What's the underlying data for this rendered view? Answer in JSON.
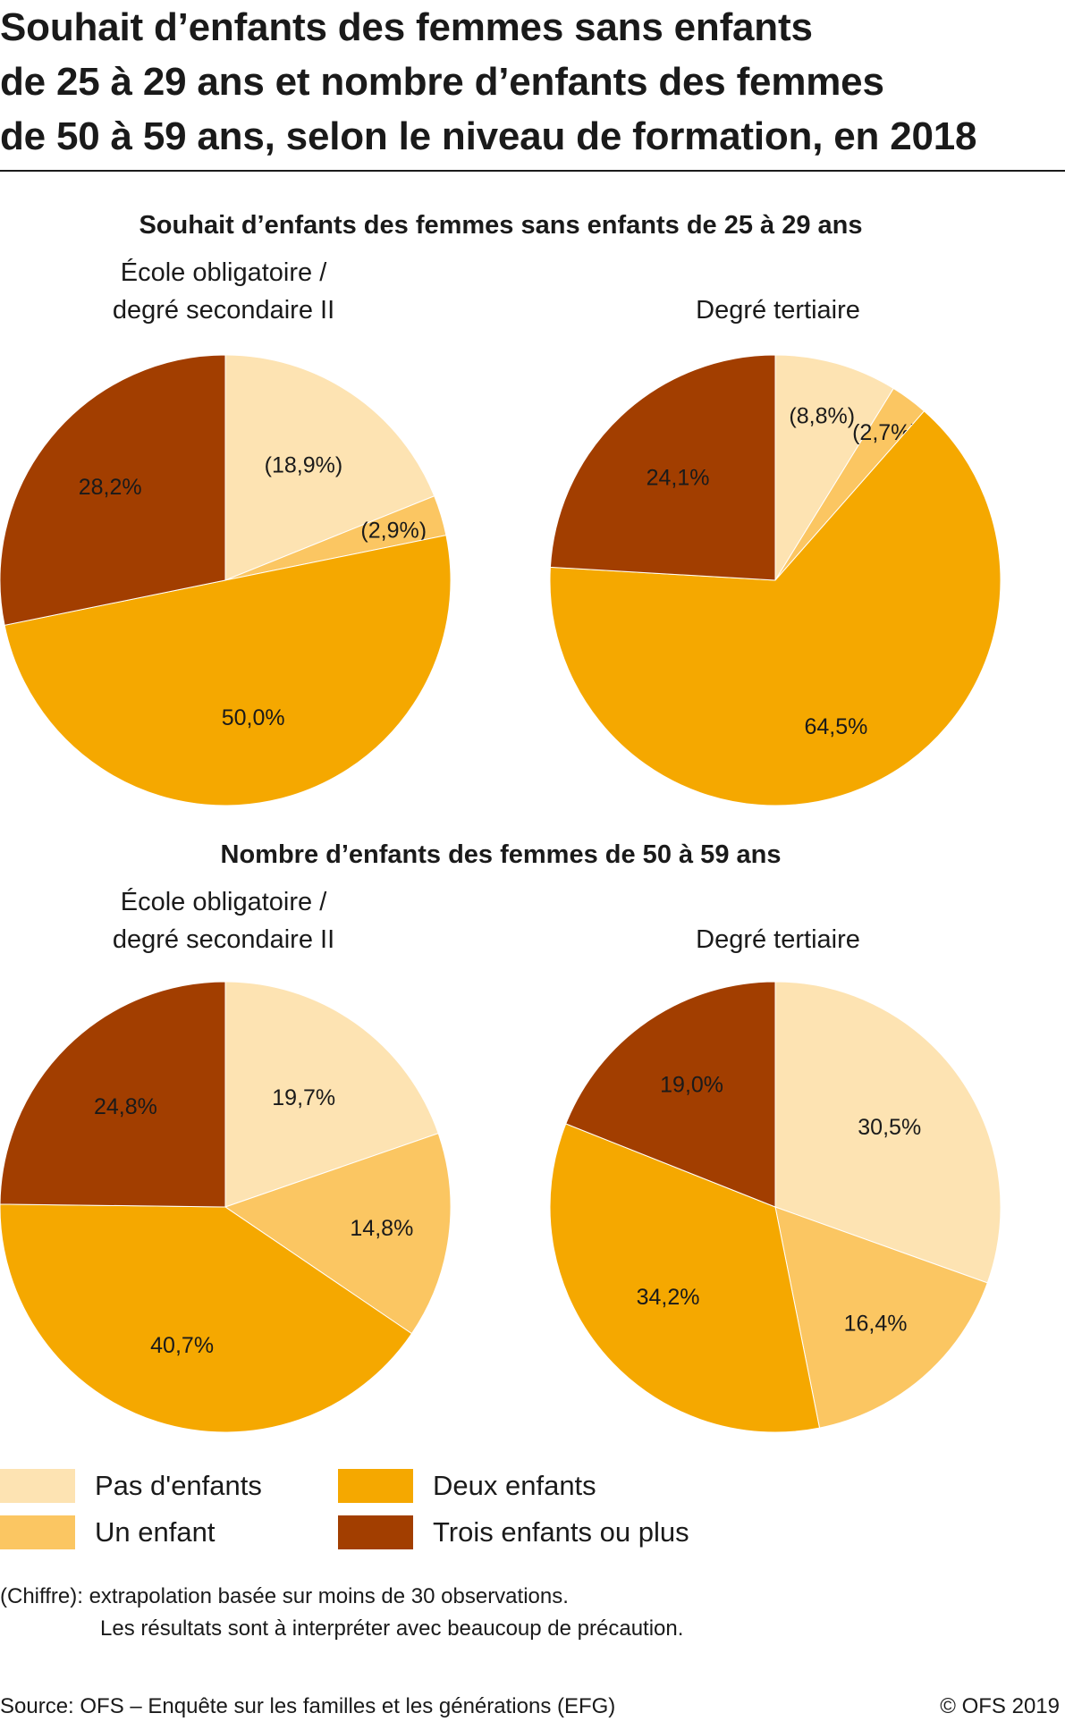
{
  "title_lines": [
    "Souhait d’enfants des femmes sans enfants",
    "de 25 à 29 ans et nombre d’enfants des femmes",
    "de 50 à 59 ans, selon le niveau de formation, en 2018"
  ],
  "section_titles": [
    "Souhait d’enfants des femmes sans enfants de 25 à 29 ans",
    "Nombre d’enfants des femmes de 50 à 59 ans"
  ],
  "colors": {
    "pas_enfants": "#fde3b2",
    "un_enfant": "#fbc662",
    "deux_enfants": "#f5a800",
    "trois_plus": "#a23e00"
  },
  "legend": [
    {
      "label": "Pas d'enfants",
      "color": "#fde3b2"
    },
    {
      "label": "Un enfant",
      "color": "#fbc662"
    },
    {
      "label": "Deux enfants",
      "color": "#f5a800"
    },
    {
      "label": "Trois enfants ou plus",
      "color": "#a23e00"
    }
  ],
  "chart_data": [
    {
      "type": "pie",
      "section": "Souhait d’enfants des femmes sans enfants de 25 à 29 ans",
      "title_lines": [
        "École obligatoire /",
        "degré secondaire II"
      ],
      "categories": [
        "Pas d'enfants",
        "Un enfant",
        "Deux enfants",
        "Trois enfants ou plus"
      ],
      "values": [
        18.9,
        2.9,
        50.0,
        28.2
      ],
      "labels": [
        "(18,9%)",
        "(2,9%)",
        "50,0%",
        "28,2%"
      ]
    },
    {
      "type": "pie",
      "section": "Souhait d’enfants des femmes sans enfants de 25 à 29 ans",
      "title_lines": [
        "Degré tertiaire"
      ],
      "categories": [
        "Pas d'enfants",
        "Un enfant",
        "Deux enfants",
        "Trois enfants ou plus"
      ],
      "values": [
        8.8,
        2.7,
        64.5,
        24.1
      ],
      "labels": [
        "(8,8%)",
        "(2,7%)",
        "64,5%",
        "24,1%"
      ]
    },
    {
      "type": "pie",
      "section": "Nombre d’enfants des femmes de 50 à 59 ans",
      "title_lines": [
        "École obligatoire /",
        "degré secondaire II"
      ],
      "categories": [
        "Pas d'enfants",
        "Un enfant",
        "Deux enfants",
        "Trois enfants ou plus"
      ],
      "values": [
        19.7,
        14.8,
        40.7,
        24.8
      ],
      "labels": [
        "19,7%",
        "14,8%",
        "40,7%",
        "24,8%"
      ]
    },
    {
      "type": "pie",
      "section": "Nombre d’enfants des femmes de 50 à 59 ans",
      "title_lines": [
        "Degré tertiaire"
      ],
      "categories": [
        "Pas d'enfants",
        "Un enfant",
        "Deux enfants",
        "Trois enfants ou plus"
      ],
      "values": [
        30.5,
        16.4,
        34.2,
        19.0
      ],
      "labels": [
        "30,5%",
        "16,4%",
        "34,2%",
        "19,0%"
      ]
    }
  ],
  "note_lines": [
    "(Chiffre): extrapolation basée sur moins de 30 observations.",
    "Les résultats sont à interpréter avec beaucoup de précaution."
  ],
  "source": "Source: OFS – Enquête sur les familles et les générations (EFG)",
  "copyright": "© OFS 2019"
}
